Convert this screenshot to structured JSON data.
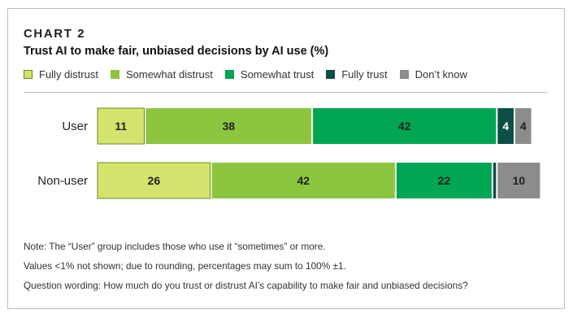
{
  "chart_label": "CHART 2",
  "chart_data": {
    "type": "bar",
    "orientation": "horizontal",
    "stacked": true,
    "title": "Trust AI to make fair, unbiased decisions by AI use (%)",
    "categories": [
      "User",
      "Non-user"
    ],
    "series": [
      {
        "name": "Fully distrust",
        "color": "#d4e36b",
        "stroke": "#6a8a1e",
        "text_color": "#222222",
        "values": [
          11,
          26
        ]
      },
      {
        "name": "Somewhat distrust",
        "color": "#8cc63f",
        "stroke": "",
        "text_color": "#222222",
        "values": [
          38,
          42
        ]
      },
      {
        "name": "Somewhat trust",
        "color": "#00a651",
        "stroke": "",
        "text_color": "#222222",
        "values": [
          42,
          22
        ]
      },
      {
        "name": "Fully trust",
        "color": "#0b4f46",
        "stroke": "",
        "text_color": "#ffffff",
        "values": [
          4,
          1
        ]
      },
      {
        "name": "Don’t know",
        "color": "#8c8c8c",
        "stroke": "",
        "text_color": "#222222",
        "values": [
          4,
          10
        ]
      }
    ],
    "data_labels": [
      [
        "11",
        "38",
        "42",
        "4",
        "4"
      ],
      [
        "26",
        "42",
        "22",
        "",
        "10"
      ]
    ],
    "xlabel": "",
    "ylabel": "",
    "xlim": [
      0,
      100
    ],
    "grid": false,
    "legend_position": "top-left"
  },
  "notes": [
    "Note: The “User” group includes those who use it “sometimes” or more.",
    "Values <1% not shown; due to rounding, percentages may sum to 100% ±1.",
    "Question wording: How much do you trust or distrust AI’s capability to make fair and unbiased decisions?"
  ]
}
